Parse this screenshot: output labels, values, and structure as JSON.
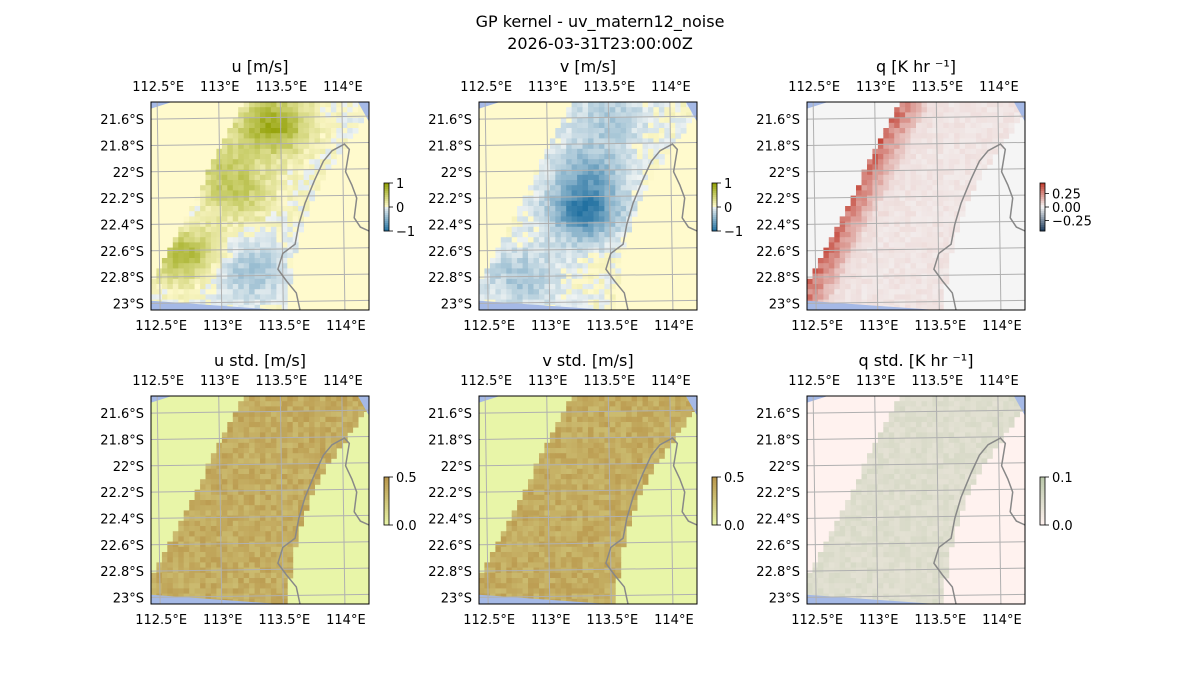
{
  "figure": {
    "title_line1": "GP kernel - uv_matern12_noise",
    "title_line2": "2026-03-31T23:00:00Z"
  },
  "colors": {
    "land": "#fffacd",
    "land_std": "#e8f5a8",
    "ocean_edge": "#a5b9e6",
    "coastline": "#888888",
    "gridline": "#b0b0b0",
    "u_pos": "#8f9e00",
    "v_neg": "#1f6fa0",
    "q_pos": "#c0392b",
    "std_uv": "#b8954a",
    "std_q": "#b9c7a9"
  },
  "chart_data": [
    {
      "type": "heatmap",
      "title": "u [m/s]",
      "field": "u",
      "colormap": "diverging-olive-teal",
      "clim": [
        -1,
        1
      ],
      "colorbar_ticks": [
        "1",
        "0",
        "−1"
      ],
      "xlim": [
        112.5,
        114.2
      ],
      "ylim": [
        -23.0,
        -21.5
      ],
      "xticks": [
        "112.5°E",
        "113°E",
        "113.5°E",
        "114°E"
      ],
      "yticks": [
        "21.6°S",
        "21.8°S",
        "22°S",
        "22.2°S",
        "22.4°S",
        "22.6°S",
        "22.8°S",
        "23°S"
      ],
      "gridlines": true,
      "features": [
        {
          "lon": 113.45,
          "lat": -21.65,
          "value": 0.85
        },
        {
          "lon": 112.7,
          "lat": -22.6,
          "value": 0.8
        },
        {
          "lon": 113.15,
          "lat": -22.15,
          "value": 0.5
        },
        {
          "lon": 113.0,
          "lat": -21.9,
          "value": 0.3
        },
        {
          "lon": 113.25,
          "lat": -22.75,
          "value": -0.35
        },
        {
          "lon": 112.55,
          "lat": -22.4,
          "value": -0.4
        }
      ]
    },
    {
      "type": "heatmap",
      "title": "v [m/s]",
      "field": "v",
      "colormap": "diverging-olive-teal",
      "clim": [
        -1,
        1
      ],
      "colorbar_ticks": [
        "1",
        "0",
        "−1"
      ],
      "xlim": [
        112.5,
        114.2
      ],
      "ylim": [
        -23.0,
        -21.5
      ],
      "xticks": [
        "112.5°E",
        "113°E",
        "113.5°E",
        "114°E"
      ],
      "yticks": [
        "21.6°S",
        "21.8°S",
        "22°S",
        "22.2°S",
        "22.4°S",
        "22.6°S",
        "22.8°S",
        "23°S"
      ],
      "gridlines": true,
      "features": [
        {
          "lon": 113.3,
          "lat": -22.3,
          "value": -0.85
        },
        {
          "lon": 113.35,
          "lat": -22.0,
          "value": -0.45
        },
        {
          "lon": 112.8,
          "lat": -22.8,
          "value": -0.35
        },
        {
          "lon": 113.5,
          "lat": -21.6,
          "value": -0.3
        }
      ]
    },
    {
      "type": "heatmap",
      "title": "q [K hr ⁻¹]",
      "field": "q",
      "colormap": "diverging-red-blue",
      "clim": [
        -0.4,
        0.4
      ],
      "colorbar_ticks": [
        "0.25",
        "0.00",
        "−0.25"
      ],
      "xlim": [
        112.5,
        114.2
      ],
      "ylim": [
        -23.0,
        -21.5
      ],
      "xticks": [
        "112.5°E",
        "113°E",
        "113.5°E",
        "114°E"
      ],
      "yticks": [
        "21.6°S",
        "21.8°S",
        "22°S",
        "22.2°S",
        "22.4°S",
        "22.6°S",
        "22.8°S",
        "23°S"
      ],
      "gridlines": true,
      "features": [
        {
          "lon": 112.55,
          "lat": -22.55,
          "value": 0.4
        },
        {
          "lon": 112.85,
          "lat": -22.2,
          "value": 0.25
        },
        {
          "lon": 113.05,
          "lat": -21.85,
          "value": 0.22
        },
        {
          "lon": 113.2,
          "lat": -21.6,
          "value": 0.18
        }
      ]
    },
    {
      "type": "heatmap",
      "title": "u std. [m/s]",
      "field": "u_std",
      "colormap": "sequential-lime-brown",
      "clim": [
        0,
        0.5
      ],
      "colorbar_ticks": [
        "0.5",
        "0.0"
      ],
      "xlim": [
        112.5,
        114.2
      ],
      "ylim": [
        -23.0,
        -21.5
      ],
      "xticks": [
        "112.5°E",
        "113°E",
        "113.5°E",
        "114°E"
      ],
      "yticks": [
        "21.6°S",
        "21.8°S",
        "22°S",
        "22.2°S",
        "22.4°S",
        "22.6°S",
        "22.8°S",
        "23°S"
      ],
      "gridlines": true,
      "band_value": 0.4
    },
    {
      "type": "heatmap",
      "title": "v std. [m/s]",
      "field": "v_std",
      "colormap": "sequential-lime-brown",
      "clim": [
        0,
        0.5
      ],
      "colorbar_ticks": [
        "0.5",
        "0.0"
      ],
      "xlim": [
        112.5,
        114.2
      ],
      "ylim": [
        -23.0,
        -21.5
      ],
      "xticks": [
        "112.5°E",
        "113°E",
        "113.5°E",
        "114°E"
      ],
      "yticks": [
        "21.6°S",
        "21.8°S",
        "22°S",
        "22.2°S",
        "22.4°S",
        "22.6°S",
        "22.8°S",
        "23°S"
      ],
      "gridlines": true,
      "band_value": 0.4
    },
    {
      "type": "heatmap",
      "title": "q std. [K hr ⁻¹]",
      "field": "q_std",
      "colormap": "sequential-pink-sage",
      "clim": [
        0,
        0.1
      ],
      "colorbar_ticks": [
        "0.1",
        "0.0"
      ],
      "xlim": [
        112.5,
        114.2
      ],
      "ylim": [
        -23.0,
        -21.5
      ],
      "xticks": [
        "112.5°E",
        "113°E",
        "113.5°E",
        "114°E"
      ],
      "yticks": [
        "21.6°S",
        "21.8°S",
        "22°S",
        "22.2°S",
        "22.4°S",
        "22.6°S",
        "22.8°S",
        "23°S"
      ],
      "gridlines": true,
      "band_value": 0.05
    }
  ]
}
